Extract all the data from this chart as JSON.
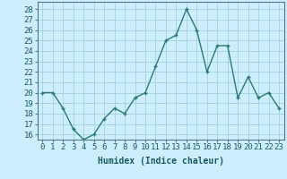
{
  "x": [
    0,
    1,
    2,
    3,
    4,
    5,
    6,
    7,
    8,
    9,
    10,
    11,
    12,
    13,
    14,
    15,
    16,
    17,
    18,
    19,
    20,
    21,
    22,
    23
  ],
  "y": [
    20,
    20,
    18.5,
    16.5,
    15.5,
    16,
    17.5,
    18.5,
    18,
    19.5,
    20,
    22.5,
    25,
    25.5,
    28,
    26,
    22,
    24.5,
    24.5,
    19.5,
    21.5,
    19.5,
    20,
    18.5
  ],
  "line_color": "#2d7a6e",
  "marker": "+",
  "marker_color": "#2d7a6e",
  "bg_color": "#cceeff",
  "grid_color": "#99cccc",
  "xlabel": "Humidex (Indice chaleur)",
  "xlabel_fontsize": 7,
  "ylabel_ticks": [
    16,
    17,
    18,
    19,
    20,
    21,
    22,
    23,
    24,
    25,
    26,
    27,
    28
  ],
  "ylim": [
    15.5,
    28.7
  ],
  "xlim": [
    -0.5,
    23.5
  ],
  "tick_fontsize": 6.5,
  "linewidth": 1.0,
  "markersize": 3.5
}
